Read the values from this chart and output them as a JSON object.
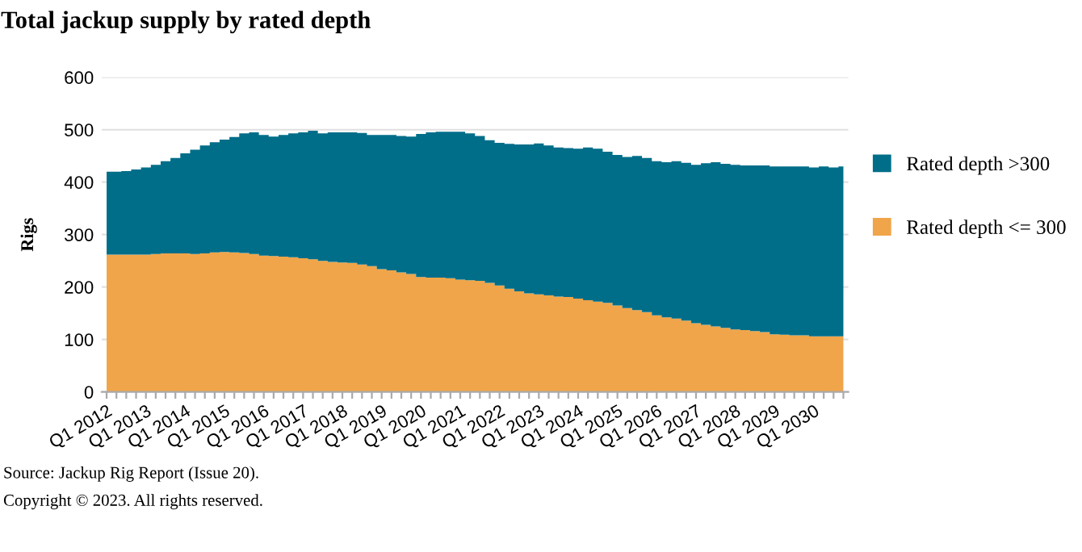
{
  "chart_data": {
    "type": "area",
    "stacked": true,
    "title": "Total jackup supply by rated depth",
    "ylabel": "Rigs",
    "categories": [
      "Q1 2012",
      null,
      null,
      null,
      "Q1 2013",
      null,
      null,
      null,
      "Q1 2014",
      null,
      null,
      null,
      "Q1 2015",
      null,
      null,
      null,
      "Q1 2016",
      null,
      null,
      null,
      "Q1 2017",
      null,
      null,
      null,
      "Q1 2018",
      null,
      null,
      null,
      "Q1 2019",
      null,
      null,
      null,
      "Q1 2020",
      null,
      null,
      null,
      "Q1 2021",
      null,
      null,
      null,
      "Q1 2022",
      null,
      null,
      null,
      "Q1 2023",
      null,
      null,
      null,
      "Q1 2024",
      null,
      null,
      null,
      "Q1 2025",
      null,
      null,
      null,
      "Q1 2026",
      null,
      null,
      null,
      "Q1 2027",
      null,
      null,
      null,
      "Q1 2028",
      null,
      null,
      null,
      "Q1 2029",
      null,
      null,
      null,
      "Q1 2030",
      null,
      null,
      null
    ],
    "series": [
      {
        "name": "Rated depth <= 300",
        "color": "#f0a54a",
        "values": [
          262,
          262,
          262,
          262,
          262,
          263,
          264,
          264,
          264,
          263,
          264,
          266,
          267,
          266,
          265,
          263,
          260,
          259,
          258,
          257,
          255,
          253,
          250,
          248,
          247,
          246,
          243,
          240,
          234,
          232,
          228,
          225,
          219,
          218,
          218,
          217,
          214,
          213,
          212,
          208,
          203,
          197,
          192,
          188,
          186,
          184,
          182,
          181,
          178,
          175,
          172,
          170,
          165,
          160,
          156,
          152,
          146,
          142,
          140,
          136,
          131,
          128,
          125,
          122,
          119,
          118,
          116,
          114,
          110,
          109,
          108,
          108,
          106,
          106,
          106,
          106
        ]
      },
      {
        "name": "Rated depth >300",
        "color": "#006e89",
        "values": [
          158,
          158,
          159,
          162,
          166,
          170,
          176,
          182,
          191,
          199,
          206,
          210,
          214,
          220,
          228,
          232,
          230,
          228,
          232,
          236,
          240,
          245,
          243,
          247,
          248,
          249,
          251,
          250,
          256,
          258,
          260,
          262,
          273,
          277,
          278,
          279,
          282,
          280,
          276,
          272,
          272,
          276,
          280,
          284,
          288,
          286,
          284,
          284,
          286,
          291,
          292,
          288,
          287,
          288,
          294,
          294,
          294,
          296,
          300,
          301,
          302,
          308,
          313,
          313,
          314,
          314,
          316,
          318,
          320,
          321,
          322,
          322,
          322,
          324,
          322,
          324
        ]
      }
    ],
    "ylim": [
      0,
      600
    ],
    "yticks": [
      0,
      100,
      200,
      300,
      400,
      500,
      600
    ],
    "grid": "y",
    "legend": "right",
    "annotations": [
      "Source: Jackup Rig Report (Issue 20).",
      "Copyright © 2023. All rights reserved."
    ]
  }
}
